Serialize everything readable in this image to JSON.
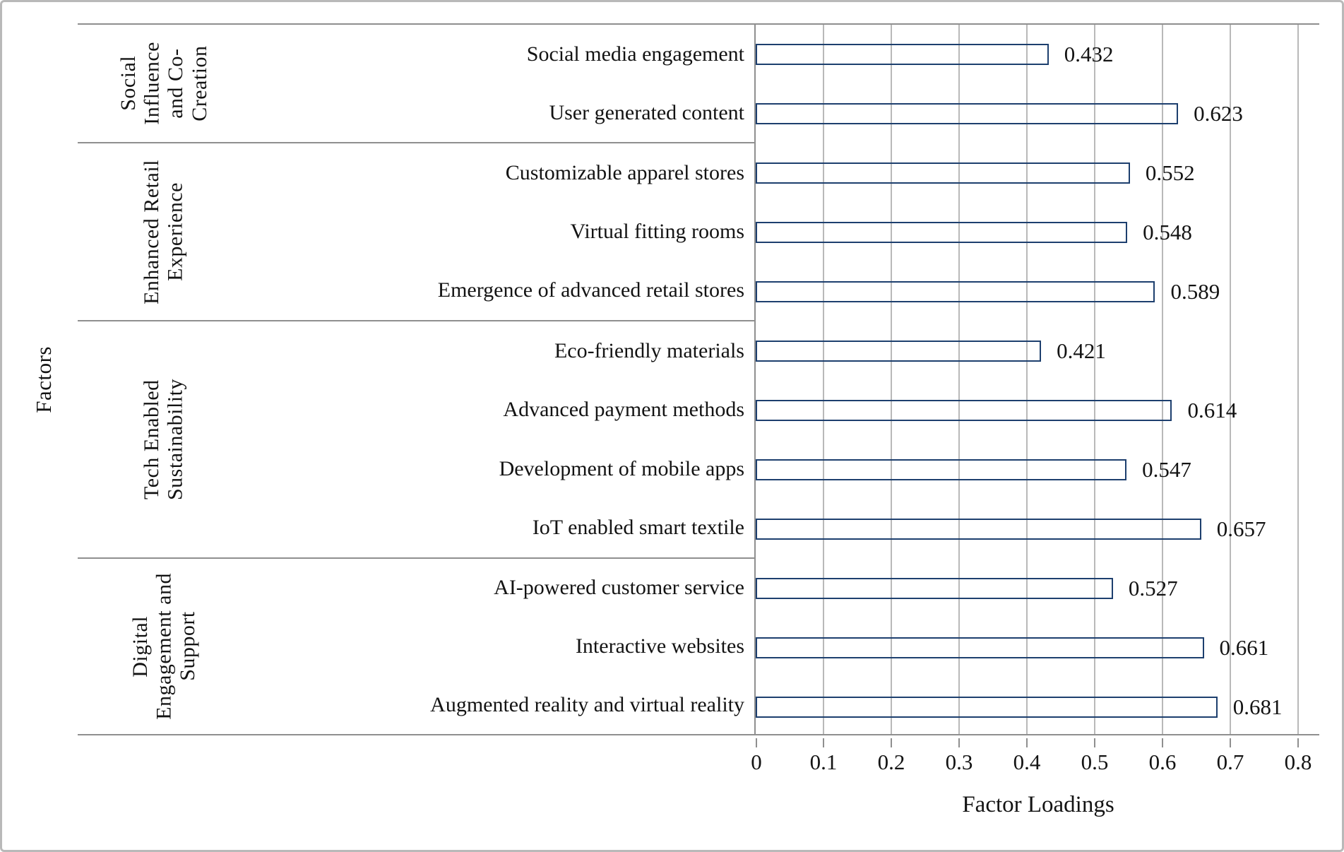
{
  "chart_data": {
    "type": "bar",
    "orientation": "horizontal",
    "title": "",
    "xlabel": "Factor Loadings",
    "ylabel": "Factors",
    "xlim": [
      0,
      0.8
    ],
    "x_tick_labels": [
      "0",
      "0.1",
      "0.2",
      "0.3",
      "0.4",
      "0.5",
      "0.6",
      "0.7",
      "0.8"
    ],
    "grid": true,
    "legend": false,
    "bar_color": "#4f81bd",
    "bar_border_color": "#1d3f6e",
    "groups": [
      {
        "label": "Social Influence and Co-Creation",
        "label_lines": "Social\nInfluence\nand Co-\nCreation",
        "items": [
          {
            "category": "Social media engagement",
            "value": 0.432,
            "value_label": "0.432"
          },
          {
            "category": "User generated content",
            "value": 0.623,
            "value_label": "0.623"
          }
        ]
      },
      {
        "label": "Enhanced Retail Experience",
        "label_lines": "Enhanced Retail\nExperience",
        "items": [
          {
            "category": "Customizable apparel stores",
            "value": 0.552,
            "value_label": "0.552"
          },
          {
            "category": "Virtual fitting rooms",
            "value": 0.548,
            "value_label": "0.548"
          },
          {
            "category": "Emergence of advanced retail stores",
            "value": 0.589,
            "value_label": "0.589"
          }
        ]
      },
      {
        "label": "Tech Enabled Sustainability",
        "label_lines": "Tech Enabled\nSustainability",
        "items": [
          {
            "category": "Eco-friendly materials",
            "value": 0.421,
            "value_label": "0.421"
          },
          {
            "category": "Advanced payment methods",
            "value": 0.614,
            "value_label": "0.614"
          },
          {
            "category": "Development of mobile apps",
            "value": 0.547,
            "value_label": "0.547"
          },
          {
            "category": "IoT enabled smart textile",
            "value": 0.657,
            "value_label": "0.657"
          }
        ]
      },
      {
        "label": "Digital Engagement and Support",
        "label_lines": "Digital\nEngagement and\nSupport",
        "items": [
          {
            "category": "AI-powered customer service",
            "value": 0.527,
            "value_label": "0.527"
          },
          {
            "category": "Interactive websites",
            "value": 0.661,
            "value_label": "0.661"
          },
          {
            "category": "Augmented reality and virtual reality",
            "value": 0.681,
            "value_label": "0.681"
          }
        ]
      }
    ]
  }
}
